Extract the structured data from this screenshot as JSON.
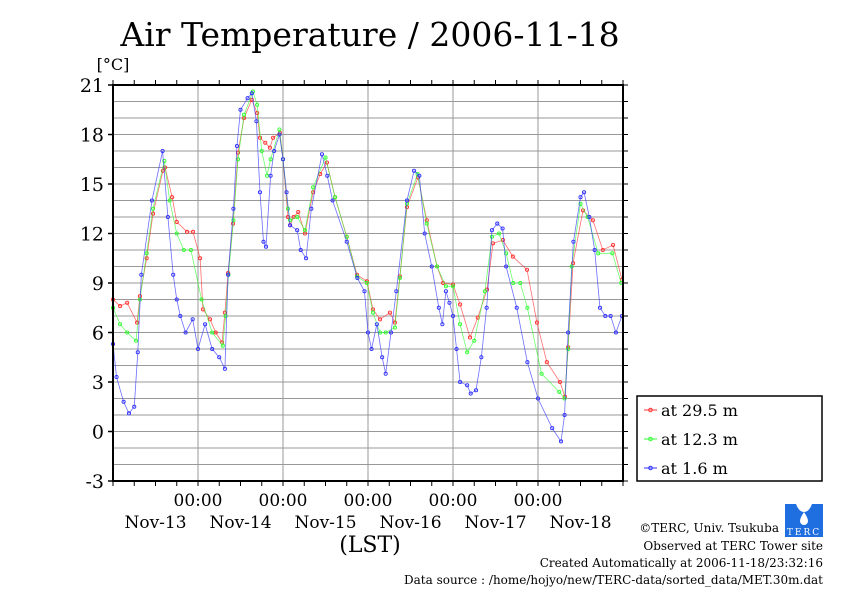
{
  "chart_data": {
    "type": "line",
    "title": "Air Temperature / 2006-11-18",
    "ylabel": "[°C]",
    "xlabel": "(LST)",
    "ylim": [
      -3,
      21
    ],
    "yticks": [
      21,
      18,
      15,
      12,
      9,
      6,
      3,
      0,
      -3
    ],
    "xlim_hours": [
      0,
      144
    ],
    "x_unit": "hours since Nov-13 00:00",
    "xtick_time_labels": [
      {
        "hour": 24,
        "label": "00:00"
      },
      {
        "hour": 48,
        "label": "00:00"
      },
      {
        "hour": 72,
        "label": "00:00"
      },
      {
        "hour": 96,
        "label": "00:00"
      },
      {
        "hour": 120,
        "label": "00:00"
      }
    ],
    "xtick_day_labels": [
      {
        "hour": 12,
        "label": "Nov-13"
      },
      {
        "hour": 36,
        "label": "Nov-14"
      },
      {
        "hour": 60,
        "label": "Nov-15"
      },
      {
        "hour": 84,
        "label": "Nov-16"
      },
      {
        "hour": 108,
        "label": "Nov-17"
      },
      {
        "hour": 132,
        "label": "Nov-18"
      }
    ],
    "grid": true,
    "legend_position": "right-bottom-outside",
    "series": [
      {
        "name": "at 29.5 m",
        "color": "#ff3030",
        "x": [
          0,
          2,
          4,
          6.8,
          7.6,
          9.5,
          11.3,
          14.1,
          14.7,
          16.7,
          18,
          20.9,
          22.6,
          24.6,
          25.4,
          27.4,
          29,
          30.8,
          31.6,
          32.5,
          33.9,
          35.3,
          37,
          39.2,
          40.7,
          41.5,
          43,
          44.3,
          45.2,
          47.1,
          48,
          49.4,
          50,
          51,
          52.3,
          54.2,
          56.5,
          58.5,
          60.4,
          62.7,
          66,
          68.9,
          71.7,
          73.4,
          75.4,
          78.2,
          79.6,
          81,
          83,
          86.1,
          88.6,
          91.5,
          93.2,
          96,
          98,
          100.8,
          103,
          105.6,
          107.3,
          110.1,
          112.9,
          116.9,
          119.7,
          122.5,
          126.2,
          127.6,
          128.5,
          129.9,
          132.7,
          135.5,
          138.3,
          141.2,
          143.7
        ],
        "y": [
          8.0,
          7.6,
          7.8,
          6.6,
          8.2,
          10.5,
          13.2,
          15.8,
          16.0,
          14.2,
          12.7,
          12.1,
          12.1,
          10.5,
          7.4,
          6.8,
          6.0,
          5.4,
          7.2,
          9.6,
          12.6,
          16.9,
          19.0,
          20.1,
          19.3,
          17.8,
          17.5,
          17.2,
          17.8,
          18.1,
          16.5,
          13.0,
          12.5,
          13.0,
          13.3,
          12.0,
          14.5,
          15.6,
          16.3,
          14.2,
          11.8,
          9.5,
          9.1,
          7.4,
          6.8,
          7.2,
          6.6,
          9.4,
          13.6,
          15.4,
          12.8,
          10.0,
          9.0,
          8.9,
          7.7,
          5.7,
          6.9,
          8.6,
          11.4,
          11.6,
          10.6,
          9.8,
          6.6,
          4.2,
          3.0,
          2.1,
          5.1,
          10.2,
          13.4,
          12.8,
          11.0,
          11.3,
          9.2
        ]
      },
      {
        "name": "at 12.3 m",
        "color": "#30ff30",
        "x": [
          0,
          2,
          4,
          6.5,
          7.6,
          9.5,
          11.3,
          14.5,
          16,
          18,
          20,
          22,
          25,
          28,
          31,
          31.8,
          32.6,
          34,
          35.3,
          37,
          39.5,
          40.7,
          42,
          43.5,
          44.5,
          47,
          48,
          49.4,
          50,
          52,
          54.2,
          56.5,
          60,
          62.7,
          66,
          68.9,
          71.7,
          73.4,
          75.4,
          77,
          79.6,
          81,
          83,
          86,
          88.6,
          91.5,
          94,
          96,
          98,
          100,
          102,
          105,
          107,
          109,
          111,
          113,
          115,
          117,
          121,
          126,
          127.5,
          128.5,
          129.5,
          132,
          134,
          137,
          141,
          143.5
        ],
        "y": [
          7.5,
          6.5,
          6.0,
          5.5,
          8.0,
          10.8,
          13.5,
          16.4,
          14.0,
          12.0,
          11.0,
          11.0,
          8.0,
          6.0,
          5.2,
          7.0,
          9.5,
          12.8,
          16.5,
          19.2,
          20.6,
          19.8,
          17.0,
          15.5,
          16.5,
          18.3,
          16.5,
          13.5,
          12.8,
          13.0,
          12.2,
          14.8,
          16.6,
          14.2,
          11.8,
          9.4,
          9.0,
          7.2,
          6.0,
          6.0,
          6.3,
          9.3,
          13.8,
          15.6,
          12.6,
          10.0,
          8.8,
          8.8,
          6.5,
          4.8,
          5.5,
          8.5,
          11.8,
          12.0,
          10.8,
          9.0,
          9.0,
          7.5,
          3.5,
          2.4,
          2.0,
          5.0,
          10.0,
          13.8,
          13.0,
          10.8,
          10.8,
          9.0
        ]
      },
      {
        "name": "at 1.6 m",
        "color": "#3030ff",
        "x": [
          0,
          1,
          3,
          4.5,
          6,
          7,
          8,
          11,
          14,
          15.5,
          17,
          18,
          19,
          20.5,
          22.5,
          24,
          26,
          28,
          30,
          31.6,
          32.5,
          34,
          35,
          36,
          38,
          39.2,
          40.5,
          41.5,
          42.5,
          43.2,
          44.5,
          45.5,
          47,
          48,
          49,
          50,
          52,
          53,
          54.5,
          56,
          59,
          60.5,
          62,
          66,
          69,
          71,
          72,
          73,
          74.5,
          76,
          77,
          78.5,
          80,
          83,
          85,
          86.5,
          88,
          90,
          92,
          93,
          94,
          95,
          96,
          97,
          98,
          100,
          101,
          102.5,
          104,
          105.5,
          107,
          108.5,
          110,
          111,
          114,
          117,
          120,
          124,
          126.5,
          127.5,
          128.5,
          130,
          132,
          133,
          134.5,
          136,
          137.5,
          139,
          140.5,
          142,
          143.7
        ],
        "y": [
          5.3,
          3.3,
          1.8,
          1.1,
          1.5,
          4.8,
          9.5,
          14.0,
          17.0,
          13.0,
          9.5,
          8.0,
          7.0,
          6.0,
          6.8,
          5.0,
          6.5,
          5.0,
          4.5,
          3.8,
          9.5,
          13.5,
          17.3,
          19.5,
          20.2,
          20.5,
          18.8,
          14.5,
          11.5,
          11.2,
          15.5,
          17.0,
          18.0,
          16.5,
          14.5,
          12.5,
          12.2,
          11.0,
          10.5,
          13.5,
          16.8,
          15.5,
          14.0,
          11.5,
          9.3,
          8.5,
          6.0,
          5.0,
          6.5,
          4.5,
          3.5,
          6.0,
          8.5,
          14.0,
          15.8,
          15.5,
          12.0,
          10.0,
          7.5,
          6.5,
          8.5,
          7.8,
          7.0,
          5.0,
          3.0,
          2.8,
          2.3,
          2.5,
          4.5,
          7.5,
          12.2,
          12.6,
          12.3,
          10.0,
          7.5,
          4.2,
          2.0,
          0.2,
          -0.6,
          1.0,
          6.0,
          11.5,
          14.2,
          14.5,
          13.0,
          11.0,
          7.5,
          7.0,
          7.0,
          6.0,
          7.0
        ]
      }
    ]
  },
  "footer": {
    "copyright": "©TERC, Univ. Tsukuba",
    "observed": "Observed at TERC Tower site",
    "created": "Created Automatically at 2006-11-18/23:32:16",
    "source": "Data source : /home/hojyo/new/TERC-data/sorted_data/MET.30m.dat",
    "logo_text": "TERC"
  }
}
